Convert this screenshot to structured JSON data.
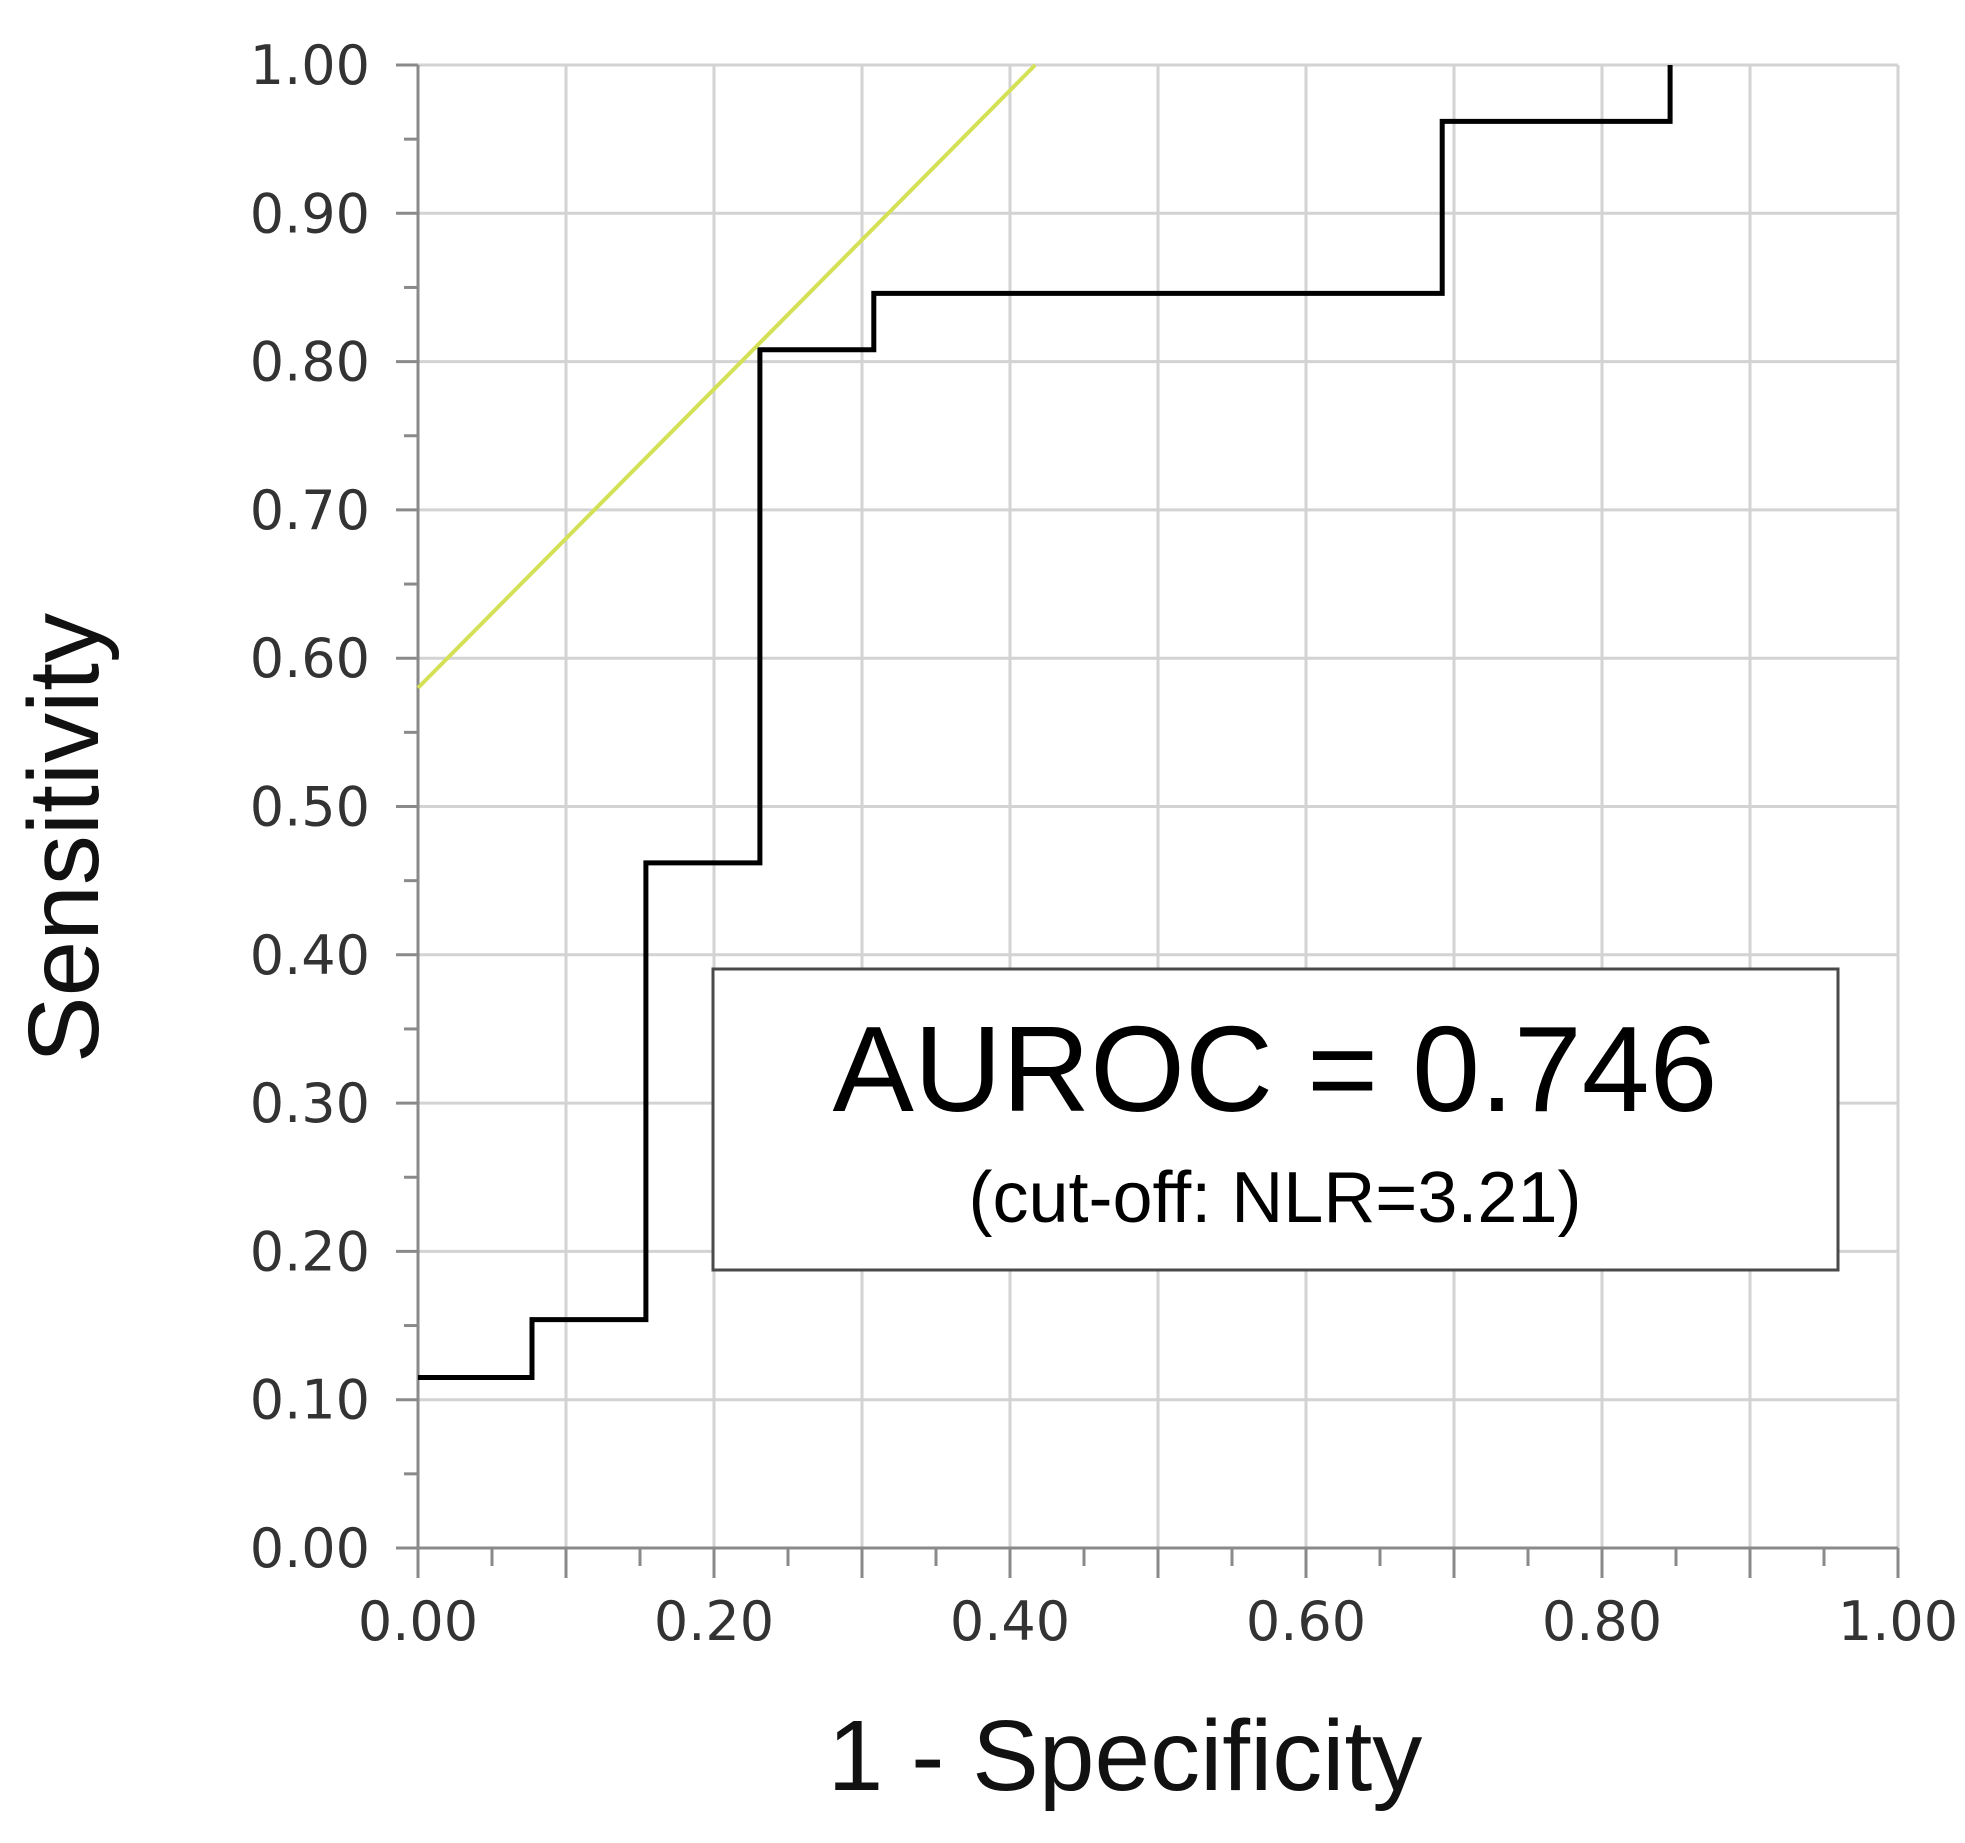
{
  "chart_data": {
    "type": "line",
    "title": "",
    "xlabel": "1 - Specificity",
    "ylabel": "Sensitivity",
    "xlim": [
      0,
      1
    ],
    "ylim": [
      0,
      1
    ],
    "x_ticks": [
      "0.00",
      "0.20",
      "0.40",
      "0.60",
      "0.80",
      "1.00"
    ],
    "y_ticks": [
      "0.00",
      "0.10",
      "0.20",
      "0.30",
      "0.40",
      "0.50",
      "0.60",
      "0.70",
      "0.80",
      "0.90",
      "1.00"
    ],
    "grid": true,
    "series": [
      {
        "kind": "step",
        "color": "#000000",
        "x": [
          0.0,
          0.077,
          0.077,
          0.154,
          0.154,
          0.231,
          0.231,
          0.308,
          0.308,
          0.692,
          0.692,
          0.846,
          0.846
        ],
        "y": [
          0.115,
          0.115,
          0.154,
          0.154,
          0.462,
          0.462,
          0.808,
          0.808,
          0.846,
          0.846,
          0.962,
          0.962,
          1.0
        ]
      },
      {
        "kind": "reference",
        "color": "#d4e157",
        "x": [
          0.0,
          0.417
        ],
        "y": [
          0.58,
          1.0
        ]
      }
    ],
    "annotation": {
      "main": "AUROC = 0.746",
      "sub": "(cut-off: NLR=3.21)"
    }
  }
}
